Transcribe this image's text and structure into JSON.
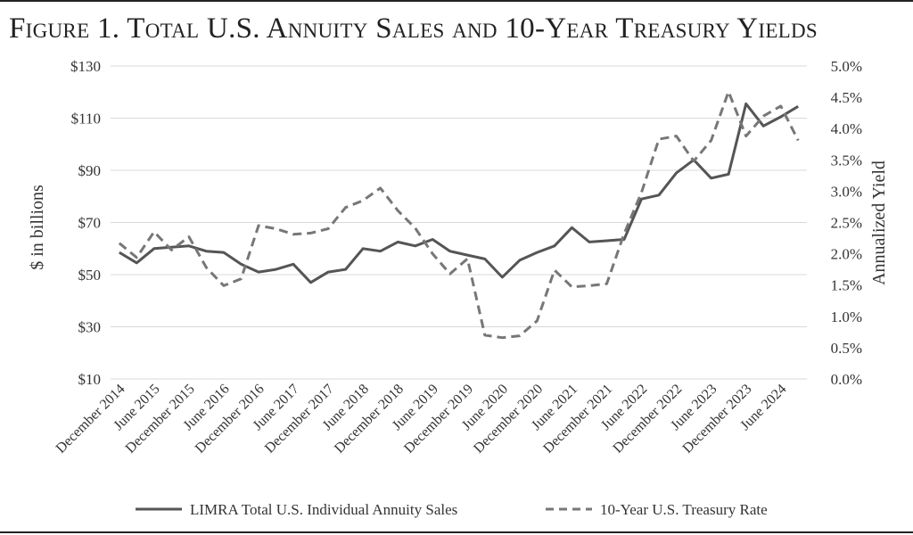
{
  "title": "Figure 1. Total U.S. Annuity Sales and 10-Year Treasury Yields",
  "chart_data": {
    "type": "line",
    "title": "Figure 1. Total U.S. Annuity Sales and 10-Year Treasury Yields",
    "ylabel": "$ in billions",
    "y2label": "Annualized Yield",
    "ylim": [
      10,
      130
    ],
    "y2lim": [
      0.0,
      5.0
    ],
    "y_ticks": [
      "$10",
      "$30",
      "$50",
      "$70",
      "$90",
      "$110",
      "$130"
    ],
    "y2_ticks": [
      "0.0%",
      "0.5%",
      "1.0%",
      "1.5%",
      "2.0%",
      "2.5%",
      "3.0%",
      "3.5%",
      "4.0%",
      "4.5%",
      "5.0%"
    ],
    "x_tick_labels": [
      "December 2014",
      "June 2015",
      "December 2015",
      "June 2016",
      "December 2016",
      "June 2017",
      "December 2017",
      "June 2018",
      "December 2018",
      "June 2019",
      "December 2019",
      "June 2020",
      "December 2020",
      "June 2021",
      "December 2021",
      "June 2022",
      "December 2022",
      "June 2023",
      "December 2023",
      "June 2024"
    ],
    "x": [
      "Dec 2014",
      "Mar 2015",
      "Jun 2015",
      "Sep 2015",
      "Dec 2015",
      "Mar 2016",
      "Jun 2016",
      "Sep 2016",
      "Dec 2016",
      "Mar 2017",
      "Jun 2017",
      "Sep 2017",
      "Dec 2017",
      "Mar 2018",
      "Jun 2018",
      "Sep 2018",
      "Dec 2018",
      "Mar 2019",
      "Jun 2019",
      "Sep 2019",
      "Dec 2019",
      "Mar 2020",
      "Jun 2020",
      "Sep 2020",
      "Dec 2020",
      "Mar 2021",
      "Jun 2021",
      "Sep 2021",
      "Dec 2021",
      "Mar 2022",
      "Jun 2022",
      "Sep 2022",
      "Dec 2022",
      "Mar 2023",
      "Jun 2023",
      "Sep 2023",
      "Dec 2023",
      "Mar 2024",
      "Jun 2024",
      "Sep 2024"
    ],
    "series": [
      {
        "name": "LIMRA Total U.S. Individual Annuity Sales",
        "axis": "left",
        "style": "solid",
        "color": "#555555",
        "values": [
          58.5,
          54.5,
          60,
          60.5,
          61,
          59,
          58.5,
          54,
          51,
          52,
          54,
          47,
          51,
          52,
          60,
          59,
          62.5,
          61,
          63.5,
          59,
          57.5,
          56,
          49,
          55.5,
          58.5,
          61,
          68,
          62.5,
          63,
          63.5,
          79,
          80.5,
          89,
          94,
          87,
          88.5,
          115.5,
          107,
          110.5,
          114.5
        ]
      },
      {
        "name": "10-Year U.S. Treasury Rate",
        "axis": "right",
        "style": "dashed",
        "color": "#777777",
        "values": [
          2.17,
          1.94,
          2.35,
          2.06,
          2.27,
          1.78,
          1.49,
          1.6,
          2.45,
          2.4,
          2.31,
          2.33,
          2.4,
          2.74,
          2.85,
          3.05,
          2.69,
          2.41,
          2.0,
          1.68,
          1.92,
          0.7,
          0.66,
          0.69,
          0.93,
          1.74,
          1.47,
          1.49,
          1.52,
          2.32,
          2.98,
          3.83,
          3.88,
          3.48,
          3.81,
          4.59,
          3.88,
          4.2,
          4.36,
          3.81
        ]
      }
    ],
    "legend": "bottom",
    "grid": "horizontal"
  }
}
